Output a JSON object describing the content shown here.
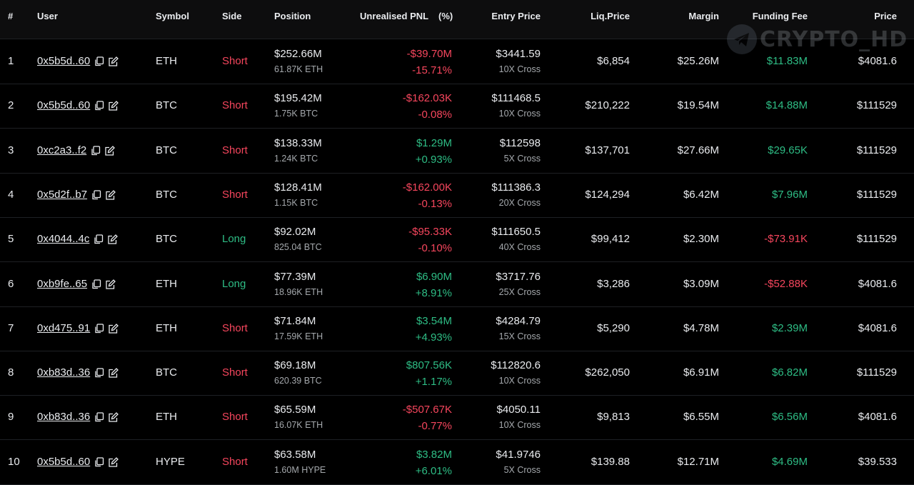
{
  "headers": {
    "rank": "#",
    "user": "User",
    "symbol": "Symbol",
    "side": "Side",
    "position": "Position",
    "pnl": "Unrealised PNL",
    "pct": "(%)",
    "entry": "Entry Price",
    "liq": "Liq.Price",
    "margin": "Margin",
    "funding": "Funding Fee",
    "price": "Price"
  },
  "watermark": {
    "text": "CRYPTO_HD",
    "icon": "telegram-icon"
  },
  "icons": {
    "copy": "copy-icon",
    "edit": "edit-icon"
  },
  "colors": {
    "red": "#f6465d",
    "green": "#2ebd85"
  },
  "rows": [
    {
      "rank": "1",
      "user": "0x5b5d..60",
      "symbol": "ETH",
      "side": "Short",
      "position": "$252.66M",
      "size": "61.87K ETH",
      "pnl": "-$39.70M",
      "pnl_pct": "-15.71%",
      "entry": "$3441.59",
      "leverage": "10X Cross",
      "liq": "$6,854",
      "margin": "$25.26M",
      "funding": "$11.83M",
      "price": "$4081.6"
    },
    {
      "rank": "2",
      "user": "0x5b5d..60",
      "symbol": "BTC",
      "side": "Short",
      "position": "$195.42M",
      "size": "1.75K BTC",
      "pnl": "-$162.03K",
      "pnl_pct": "-0.08%",
      "entry": "$111468.5",
      "leverage": "10X Cross",
      "liq": "$210,222",
      "margin": "$19.54M",
      "funding": "$14.88M",
      "price": "$111529"
    },
    {
      "rank": "3",
      "user": "0xc2a3..f2",
      "symbol": "BTC",
      "side": "Short",
      "position": "$138.33M",
      "size": "1.24K BTC",
      "pnl": "$1.29M",
      "pnl_pct": "+0.93%",
      "entry": "$112598",
      "leverage": "5X Cross",
      "liq": "$137,701",
      "margin": "$27.66M",
      "funding": "$29.65K",
      "price": "$111529"
    },
    {
      "rank": "4",
      "user": "0x5d2f..b7",
      "symbol": "BTC",
      "side": "Short",
      "position": "$128.41M",
      "size": "1.15K BTC",
      "pnl": "-$162.00K",
      "pnl_pct": "-0.13%",
      "entry": "$111386.3",
      "leverage": "20X Cross",
      "liq": "$124,294",
      "margin": "$6.42M",
      "funding": "$7.96M",
      "price": "$111529"
    },
    {
      "rank": "5",
      "user": "0x4044..4c",
      "symbol": "BTC",
      "side": "Long",
      "position": "$92.02M",
      "size": "825.04 BTC",
      "pnl": "-$95.33K",
      "pnl_pct": "-0.10%",
      "entry": "$111650.5",
      "leverage": "40X Cross",
      "liq": "$99,412",
      "margin": "$2.30M",
      "funding": "-$73.91K",
      "price": "$111529"
    },
    {
      "rank": "6",
      "user": "0xb9fe..65",
      "symbol": "ETH",
      "side": "Long",
      "position": "$77.39M",
      "size": "18.96K ETH",
      "pnl": "$6.90M",
      "pnl_pct": "+8.91%",
      "entry": "$3717.76",
      "leverage": "25X Cross",
      "liq": "$3,286",
      "margin": "$3.09M",
      "funding": "-$52.88K",
      "price": "$4081.6"
    },
    {
      "rank": "7",
      "user": "0xd475..91",
      "symbol": "ETH",
      "side": "Short",
      "position": "$71.84M",
      "size": "17.59K ETH",
      "pnl": "$3.54M",
      "pnl_pct": "+4.93%",
      "entry": "$4284.79",
      "leverage": "15X Cross",
      "liq": "$5,290",
      "margin": "$4.78M",
      "funding": "$2.39M",
      "price": "$4081.6"
    },
    {
      "rank": "8",
      "user": "0xb83d..36",
      "symbol": "BTC",
      "side": "Short",
      "position": "$69.18M",
      "size": "620.39 BTC",
      "pnl": "$807.56K",
      "pnl_pct": "+1.17%",
      "entry": "$112820.6",
      "leverage": "10X Cross",
      "liq": "$262,050",
      "margin": "$6.91M",
      "funding": "$6.82M",
      "price": "$111529"
    },
    {
      "rank": "9",
      "user": "0xb83d..36",
      "symbol": "ETH",
      "side": "Short",
      "position": "$65.59M",
      "size": "16.07K ETH",
      "pnl": "-$507.67K",
      "pnl_pct": "-0.77%",
      "entry": "$4050.11",
      "leverage": "10X Cross",
      "liq": "$9,813",
      "margin": "$6.55M",
      "funding": "$6.56M",
      "price": "$4081.6"
    },
    {
      "rank": "10",
      "user": "0x5b5d..60",
      "symbol": "HYPE",
      "side": "Short",
      "position": "$63.58M",
      "size": "1.60M HYPE",
      "pnl": "$3.82M",
      "pnl_pct": "+6.01%",
      "entry": "$41.9746",
      "leverage": "5X Cross",
      "liq": "$139.88",
      "margin": "$12.71M",
      "funding": "$4.69M",
      "price": "$39.533"
    }
  ]
}
